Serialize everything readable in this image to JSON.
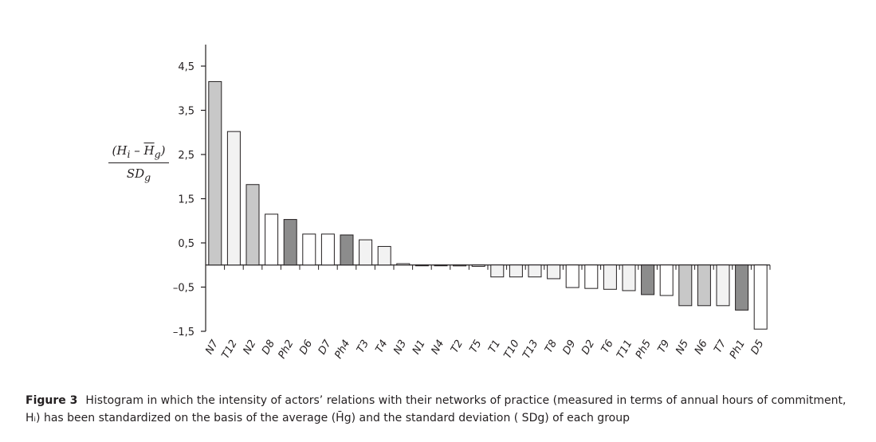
{
  "chart_data": {
    "type": "bar",
    "categories": [
      "N7",
      "T12",
      "N2",
      "D8",
      "Ph2",
      "D6",
      "D7",
      "Ph4",
      "T3",
      "T4",
      "N3",
      "N1",
      "N4",
      "T2",
      "T5",
      "T1",
      "T10",
      "T13",
      "T8",
      "D9",
      "D2",
      "T6",
      "T11",
      "Ph5",
      "T9",
      "N5",
      "N6",
      "T7",
      "Ph1",
      "D5"
    ],
    "values": [
      4.15,
      3.02,
      1.82,
      1.15,
      1.03,
      0.7,
      0.7,
      0.68,
      0.57,
      0.42,
      0.03,
      0.0,
      -0.01,
      -0.02,
      -0.03,
      -0.27,
      -0.27,
      -0.27,
      -0.31,
      -0.51,
      -0.53,
      -0.55,
      -0.58,
      -0.67,
      -0.69,
      -0.92,
      -0.92,
      -0.92,
      -1.02,
      -1.45
    ],
    "bar_colors": [
      "#c8c8c8",
      "#f2f2f2",
      "#c8c8c8",
      "#ffffff",
      "#8c8c8c",
      "#ffffff",
      "#ffffff",
      "#8c8c8c",
      "#f2f2f2",
      "#f2f2f2",
      "#ffffff",
      "#ffffff",
      "#ffffff",
      "#f2f2f2",
      "#f2f2f2",
      "#f2f2f2",
      "#f2f2f2",
      "#f2f2f2",
      "#f2f2f2",
      "#ffffff",
      "#ffffff",
      "#f2f2f2",
      "#f2f2f2",
      "#8c8c8c",
      "#ffffff",
      "#c8c8c8",
      "#c8c8c8",
      "#f2f2f2",
      "#8c8c8c",
      "#ffffff"
    ],
    "ylim": [
      -1.5,
      5.0
    ],
    "yticks": [
      -1.5,
      -0.5,
      0.5,
      1.5,
      2.5,
      3.5,
      4.5
    ],
    "ytick_labels": [
      "–1,5",
      "–0,5",
      "0,5",
      "1,5",
      "2,5",
      "3,5",
      "4,5"
    ],
    "ylabel": {
      "numerator_open": "(H",
      "numerator_sub_i": "i",
      "numerator_minus": " – ",
      "numerator_H": "H",
      "numerator_sub_g": "g",
      "numerator_close": ")",
      "denominator": "SD",
      "denominator_sub": "g"
    },
    "grid": false,
    "stroke_color": "#231f20"
  },
  "caption": {
    "label": "Figure 3",
    "text": "Histogram in which the intensity of actors’ relations with their networks of practice (measured in terms of annual hours of commitment, Hᵢ) has been standardized on the basis of the average (H̄g) and the standard deviation ( SDg) of each group"
  }
}
